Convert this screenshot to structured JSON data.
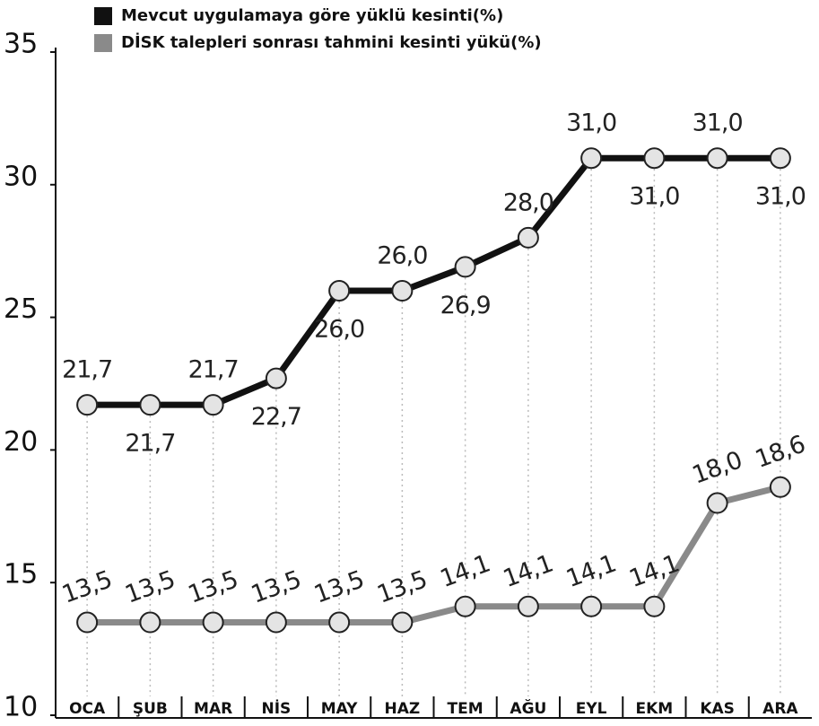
{
  "chart_data": {
    "type": "line",
    "categories": [
      "OCA",
      "ŞUB",
      "MAR",
      "NİS",
      "MAY",
      "HAZ",
      "TEM",
      "AĞU",
      "EYL",
      "EKM",
      "KAS",
      "ARA"
    ],
    "series": [
      {
        "name": "Mevcut uygulamaya göre yüklü kesinti(%)",
        "color": "#111111",
        "values": [
          21.7,
          21.7,
          21.7,
          22.7,
          26.0,
          26.0,
          26.9,
          28.0,
          31.0,
          31.0,
          31.0,
          31.0
        ],
        "value_labels": [
          "21,7",
          "21,7",
          "21,7",
          "22,7",
          "26,0",
          "26,0",
          "26,9",
          "28,0",
          "31,0",
          "31,0",
          "31,0",
          "31,0"
        ]
      },
      {
        "name": "DİSK talepleri sonrası tahmini kesinti yükü(%)",
        "color": "#8a8a8a",
        "values": [
          13.5,
          13.5,
          13.5,
          13.5,
          13.5,
          13.5,
          14.1,
          14.1,
          14.1,
          14.1,
          18.0,
          18.6
        ],
        "value_labels": [
          "13,5",
          "13,5",
          "13,5",
          "13,5",
          "13,5",
          "13,5",
          "14,1",
          "14,1",
          "14,1",
          "14,1",
          "18,0",
          "18,6"
        ]
      }
    ],
    "ylim": [
      10,
      35
    ],
    "yticks": [
      10,
      15,
      20,
      25,
      30,
      35
    ],
    "legend": "top-left"
  }
}
